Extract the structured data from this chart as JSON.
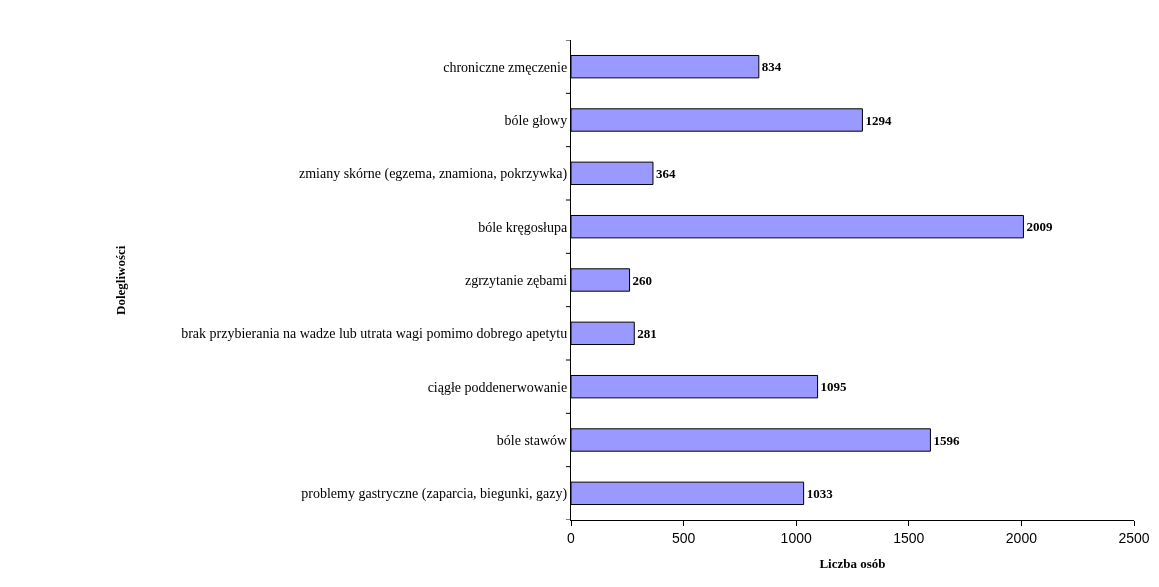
{
  "chart_data": {
    "type": "bar",
    "orientation": "horizontal",
    "xlabel": "Liczba osób",
    "ylabel": "Dolegliwości",
    "categories": [
      "chroniczne zmęczenie",
      "bóle głowy",
      "zmiany skórne (egzema, znamiona, pokrzywka)",
      "bóle kręgosłupa",
      "zgrzytanie zębami",
      "brak przybierania na wadze lub utrata wagi pomimo dobrego apetytu",
      "ciągłe poddenerwowanie",
      "bóle stawów",
      "problemy gastryczne (zaparcia, biegunki, gazy)"
    ],
    "values": [
      834,
      1294,
      364,
      2009,
      260,
      281,
      1095,
      1596,
      1033
    ],
    "color": "#9999ff",
    "xlim": [
      0,
      2500
    ],
    "xticks": [
      0,
      500,
      1000,
      1500,
      2000,
      2500
    ],
    "data_labels": true
  }
}
